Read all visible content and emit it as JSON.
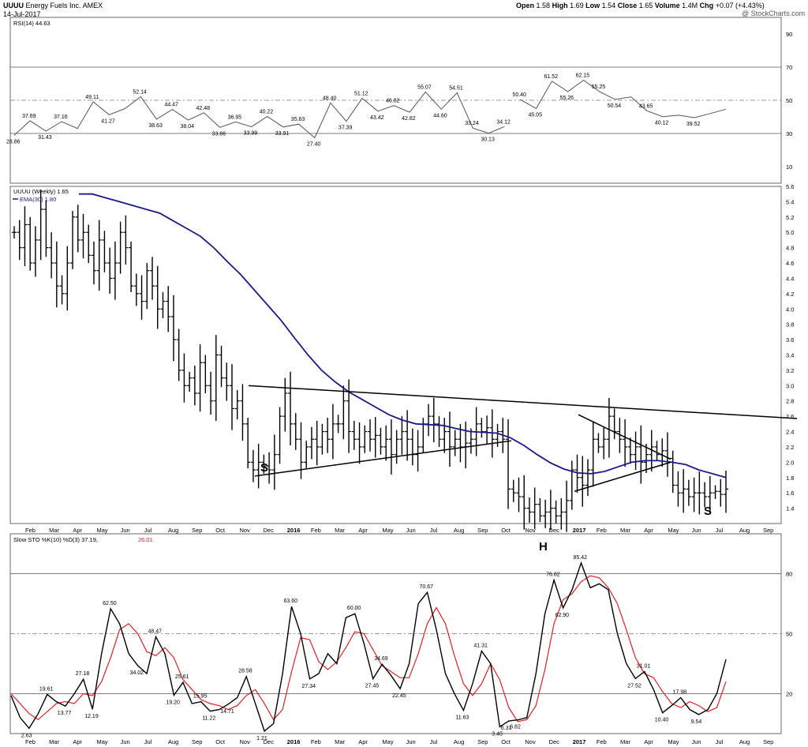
{
  "header": {
    "symbol": "UUUU",
    "company": "Energy Fuels Inc.",
    "exchange": "AMEX",
    "date": "14-Jul-2017",
    "watermark": "@ StockCharts.com",
    "quote": {
      "open_label": "Open",
      "open": "1.58",
      "high_label": "High",
      "high": "1.69",
      "low_label": "Low",
      "low": "1.54",
      "close_label": "Close",
      "close": "1.65",
      "volume_label": "Volume",
      "volume": "1.4M",
      "chg_label": "Chg",
      "chg": "+0.07 (+4.43%)"
    }
  },
  "colors": {
    "ema": "#1a1a8c",
    "stoch_d": "#e02020",
    "price": "#000000",
    "grid": "#888888"
  },
  "chart_data": [
    {
      "id": "rsi",
      "type": "line",
      "title": "RSI(14) 44.63",
      "ylim": [
        0,
        100
      ],
      "ticks": [
        10,
        30,
        50,
        70,
        90
      ],
      "solid_levels": [
        30,
        70
      ],
      "dashed_levels": [
        50
      ],
      "x": [
        0,
        4,
        8,
        12,
        16,
        20,
        24,
        28,
        32,
        36,
        40,
        44,
        48,
        52,
        56,
        60,
        64,
        68,
        72,
        76,
        80,
        84,
        88,
        92,
        96,
        100,
        104,
        108,
        112,
        116,
        120,
        124
      ],
      "values": [
        28.86,
        37.69,
        31.43,
        37.16,
        33,
        49.11,
        41.27,
        45,
        52.14,
        38.63,
        44.47,
        38.04,
        42.48,
        33.66,
        36.95,
        33.99,
        40.22,
        33.91,
        35.63,
        27.4,
        48.4,
        37.39,
        51.12,
        43.42,
        46.82,
        42.82,
        55.07,
        44.6,
        54.51,
        33.24,
        30.13,
        34.12
      ],
      "labels": [
        {
          "x": 0,
          "v": 28.86,
          "t": "28.86",
          "pos": "below"
        },
        {
          "x": 4,
          "v": 37.69,
          "t": "37.69",
          "pos": "above"
        },
        {
          "x": 8,
          "v": 31.43,
          "t": "31.43",
          "pos": "below"
        },
        {
          "x": 12,
          "v": 37.16,
          "t": "37.16",
          "pos": "above"
        },
        {
          "x": 20,
          "v": 49.11,
          "t": "49.11",
          "pos": "above"
        },
        {
          "x": 24,
          "v": 41.27,
          "t": "41.27",
          "pos": "below"
        },
        {
          "x": 32,
          "v": 52.14,
          "t": "52.14",
          "pos": "above"
        },
        {
          "x": 36,
          "v": 38.63,
          "t": "38.63",
          "pos": "below"
        },
        {
          "x": 40,
          "v": 44.47,
          "t": "44.47",
          "pos": "above"
        },
        {
          "x": 44,
          "v": 38.04,
          "t": "38.04",
          "pos": "below"
        },
        {
          "x": 48,
          "v": 42.48,
          "t": "42.48",
          "pos": "above"
        },
        {
          "x": 52,
          "v": 33.66,
          "t": "33.66",
          "pos": "below"
        },
        {
          "x": 56,
          "v": 36.95,
          "t": "36.95",
          "pos": "above"
        },
        {
          "x": 60,
          "v": 33.99,
          "t": "33.99",
          "pos": "below"
        },
        {
          "x": 64,
          "v": 40.22,
          "t": "40.22",
          "pos": "above"
        },
        {
          "x": 68,
          "v": 33.91,
          "t": "33.91",
          "pos": "below"
        },
        {
          "x": 72,
          "v": 35.63,
          "t": "35.63",
          "pos": "above"
        },
        {
          "x": 76,
          "v": 27.4,
          "t": "27.40",
          "pos": "below"
        },
        {
          "x": 80,
          "v": 48.4,
          "t": "48.40",
          "pos": "above"
        },
        {
          "x": 84,
          "v": 37.39,
          "t": "37.39",
          "pos": "below"
        },
        {
          "x": 88,
          "v": 51.12,
          "t": "51.12",
          "pos": "above"
        },
        {
          "x": 92,
          "v": 43.42,
          "t": "43.42",
          "pos": "below"
        },
        {
          "x": 96,
          "v": 46.82,
          "t": "46.82",
          "pos": "above"
        },
        {
          "x": 100,
          "v": 42.82,
          "t": "42.82",
          "pos": "below"
        },
        {
          "x": 104,
          "v": 55.07,
          "t": "55.07",
          "pos": "above"
        },
        {
          "x": 108,
          "v": 44.6,
          "t": "44.60",
          "pos": "below"
        },
        {
          "x": 112,
          "v": 54.51,
          "t": "54.51",
          "pos": "above"
        },
        {
          "x": 116,
          "v": 33.24,
          "t": "33.24",
          "pos": "above"
        },
        {
          "x": 120,
          "v": 30.13,
          "t": "30.13",
          "pos": "below"
        },
        {
          "x": 124,
          "v": 34.12,
          "t": "34.12",
          "pos": "above"
        }
      ],
      "x2": [
        128,
        132,
        136,
        140,
        144,
        148,
        152,
        156,
        160,
        164,
        168,
        172,
        176,
        180
      ],
      "values2": [
        50.4,
        45.05,
        61.52,
        55.26,
        62.15,
        55.25,
        50.54,
        52,
        43.65,
        40.12,
        41,
        39.52,
        42,
        44.63
      ],
      "labels2": [
        {
          "x": 128,
          "v": 50.4,
          "t": "50.40",
          "pos": "above"
        },
        {
          "x": 132,
          "v": 45.05,
          "t": "45.05",
          "pos": "below"
        },
        {
          "x": 136,
          "v": 61.52,
          "t": "61.52",
          "pos": "above"
        },
        {
          "x": 140,
          "v": 55.26,
          "t": "55.26",
          "pos": "below"
        },
        {
          "x": 144,
          "v": 62.15,
          "t": "62.15",
          "pos": "above"
        },
        {
          "x": 148,
          "v": 55.25,
          "t": "55.25",
          "pos": "above"
        },
        {
          "x": 152,
          "v": 50.54,
          "t": "50.54",
          "pos": "below"
        },
        {
          "x": 160,
          "v": 43.65,
          "t": "43.65",
          "pos": "above"
        },
        {
          "x": 164,
          "v": 40.12,
          "t": "40.12",
          "pos": "below"
        },
        {
          "x": 172,
          "v": 39.52,
          "t": "39.52",
          "pos": "below"
        }
      ]
    },
    {
      "id": "price",
      "type": "ohlc",
      "title": "UUUU (Weekly) 1.65",
      "ema_label": "EMA(30) 1.80",
      "ylim": [
        1.2,
        5.6
      ],
      "ticks": [
        1.4,
        1.6,
        1.8,
        2.0,
        2.2,
        2.4,
        2.6,
        2.8,
        3.0,
        3.2,
        3.4,
        3.6,
        3.8,
        4.0,
        4.2,
        4.4,
        4.6,
        4.8,
        5.0,
        5.2,
        5.4,
        5.6
      ],
      "x_month_labels": [
        "Feb",
        "Mar",
        "Apr",
        "May",
        "Jun",
        "Jul",
        "Aug",
        "Sep",
        "Oct",
        "Nov",
        "Dec",
        "2016",
        "Feb",
        "Mar",
        "Apr",
        "May",
        "Jun",
        "Jul",
        "Aug",
        "Sep",
        "Oct",
        "Nov",
        "Dec",
        "2017",
        "Feb",
        "Mar",
        "Apr",
        "May",
        "Jun",
        "Jul",
        "Aug",
        "Sep"
      ],
      "closes": [
        5.0,
        4.8,
        5.1,
        4.6,
        4.9,
        5.3,
        4.8,
        4.6,
        4.3,
        4.2,
        4.6,
        5.2,
        4.9,
        5.0,
        4.7,
        4.5,
        4.9,
        4.6,
        4.4,
        4.6,
        5.0,
        4.8,
        4.3,
        4.2,
        4.1,
        4.5,
        4.3,
        4.0,
        4.1,
        3.9,
        3.6,
        3.2,
        3.0,
        3.1,
        2.9,
        3.3,
        3.0,
        2.8,
        3.4,
        3.1,
        3.0,
        2.7,
        2.8,
        2.5,
        2.0,
        1.9,
        2.0,
        1.95,
        1.9,
        2.1,
        2.6,
        2.9,
        2.5,
        2.3,
        2.0,
        2.2,
        2.3,
        2.2,
        2.4,
        2.3,
        2.5,
        2.5,
        2.8,
        2.4,
        2.3,
        2.2,
        2.4,
        2.3,
        2.35,
        2.2,
        2.3,
        2.1,
        2.3,
        2.4,
        2.3,
        2.1,
        2.2,
        2.5,
        2.6,
        2.5,
        2.3,
        2.4,
        2.2,
        2.3,
        2.2,
        2.25,
        2.3,
        2.5,
        2.4,
        2.45,
        2.3,
        2.4,
        2.3,
        1.65,
        1.6,
        1.55,
        1.4,
        1.35,
        1.45,
        1.3,
        1.35,
        1.4,
        1.3,
        1.35,
        1.5,
        1.9,
        1.8,
        1.7,
        1.9,
        2.3,
        2.2,
        2.3,
        2.6,
        2.4,
        2.3,
        2.2,
        2.1,
        2.2,
        2.0,
        2.1,
        2.2,
        2.1,
        2.15,
        2.05,
        1.7,
        1.6,
        1.65,
        1.55,
        1.6,
        1.6,
        1.55,
        1.6,
        1.62,
        1.58,
        1.65
      ],
      "ema30": [
        5.5,
        5.5,
        5.45,
        5.4,
        5.35,
        5.3,
        5.25,
        5.15,
        5.05,
        4.95,
        4.8,
        4.62,
        4.45,
        4.25,
        4.05,
        3.85,
        3.62,
        3.4,
        3.2,
        3.05,
        2.92,
        2.82,
        2.72,
        2.62,
        2.55,
        2.5,
        2.49,
        2.48,
        2.44,
        2.4,
        2.39,
        2.38,
        2.32,
        2.22,
        2.1,
        1.99,
        1.91,
        1.86,
        1.85,
        1.88,
        1.94,
        2.0,
        2.02,
        2.02,
        2.0,
        1.97,
        1.9,
        1.85,
        1.8
      ]
    },
    {
      "id": "stoch",
      "type": "line",
      "title": "Slow STO %K(10) %D(3) 37.19, 26.01",
      "ylim": [
        0,
        100
      ],
      "ticks": [
        20,
        50,
        80
      ],
      "solid_levels": [
        20,
        80
      ],
      "dashed_levels": [
        50
      ],
      "k": [
        19,
        8,
        2.63,
        10,
        19.61,
        16,
        13.77,
        20,
        27.18,
        12.19,
        40,
        62.5,
        55,
        40,
        34.02,
        30,
        48.47,
        40,
        19.2,
        25.61,
        15,
        15.95,
        11.22,
        12,
        14.71,
        18,
        28.58,
        15,
        1.21,
        5,
        30,
        63.6,
        50,
        27.34,
        30,
        40,
        35,
        58,
        60.0,
        45,
        27.45,
        34.69,
        29,
        22.45,
        35,
        65,
        70.67,
        52,
        30,
        20,
        11.63,
        25,
        41.31,
        35,
        3.4,
        6.31,
        6.82,
        8,
        30,
        60,
        76.82,
        62.9,
        72,
        85.42,
        73,
        75,
        72,
        50,
        35,
        27.52,
        31.01,
        22,
        10.4,
        14,
        17.98,
        12,
        9.54,
        12,
        20,
        37.19
      ],
      "d": [
        20,
        15,
        10,
        7,
        11,
        15,
        16,
        15,
        20,
        19,
        26,
        38,
        52,
        55,
        50,
        41,
        39,
        43,
        38,
        27,
        22,
        17,
        15,
        14,
        12,
        14,
        19,
        22,
        15,
        7,
        12,
        31,
        48,
        47,
        36,
        32,
        36,
        43,
        51,
        50,
        42,
        34,
        31,
        28,
        28,
        40,
        55,
        63,
        55,
        39,
        25,
        19,
        25,
        35,
        27,
        13,
        6,
        7,
        14,
        32,
        55,
        67,
        70,
        76,
        79,
        78,
        73,
        65,
        52,
        38,
        30,
        28,
        21,
        15,
        13,
        16,
        14,
        11,
        13,
        26.01
      ]
    }
  ],
  "annotations": {
    "left_shoulder": "S",
    "head": "H",
    "right_shoulder": "S"
  }
}
